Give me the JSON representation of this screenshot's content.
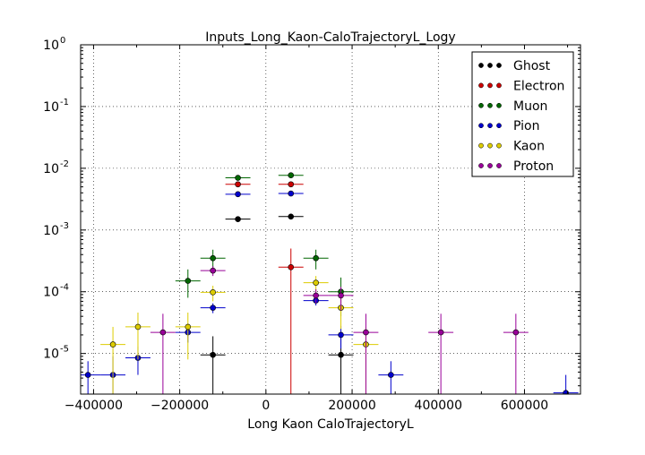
{
  "chart_data": {
    "type": "scatter",
    "title": "Inputs_Long_Kaon-CaloTrajectoryL_Logy",
    "xlabel": "Long Kaon CaloTrajectoryL",
    "ylabel": "",
    "xlim": [
      -430000,
      730000
    ],
    "ylim": [
      2.2e-06,
      1
    ],
    "yscale": "log",
    "grid": true,
    "legend_position": "top-right",
    "xticks": [
      -400000,
      -200000,
      0,
      200000,
      400000,
      600000
    ],
    "xtick_labels": [
      "−400000",
      "−200000",
      "0",
      "200000",
      "400000",
      "600000"
    ],
    "yticks": [
      1e-05,
      0.0001,
      0.001,
      0.01,
      0.1,
      1
    ],
    "ytick_labels": [
      {
        "base": "10",
        "exp": "-5"
      },
      {
        "base": "10",
        "exp": "-4"
      },
      {
        "base": "10",
        "exp": "-3"
      },
      {
        "base": "10",
        "exp": "-2"
      },
      {
        "base": "10",
        "exp": "-1"
      },
      {
        "base": "10",
        "exp": "0"
      }
    ],
    "bin_halfwidth": 29000,
    "series": [
      {
        "name": "Ghost",
        "color": "#000000",
        "points": [
          {
            "x": -65000,
            "y": 0.0015,
            "ylo": 0.00135,
            "yhi": 0.00165
          },
          {
            "x": 58000,
            "y": 0.00165,
            "ylo": 0.0015,
            "yhi": 0.0018
          },
          {
            "x": -123000,
            "y": 9.5e-06,
            "ylo": 1e-07,
            "yhi": 1.9e-05
          },
          {
            "x": 174000,
            "y": 9.5e-06,
            "ylo": 1e-07,
            "yhi": 1.9e-05
          }
        ]
      },
      {
        "name": "Electron",
        "color": "#cc0000",
        "points": [
          {
            "x": -65000,
            "y": 0.0055,
            "ylo": 0.0052,
            "yhi": 0.0058
          },
          {
            "x": 58000,
            "y": 0.0055,
            "ylo": 0.0052,
            "yhi": 0.0058
          },
          {
            "x": 58000,
            "y": 0.00025,
            "ylo": 1e-07,
            "yhi": 0.0005
          }
        ]
      },
      {
        "name": "Muon",
        "color": "#006600",
        "points": [
          {
            "x": -65000,
            "y": 0.007,
            "ylo": 0.0066,
            "yhi": 0.0074
          },
          {
            "x": 58000,
            "y": 0.0077,
            "ylo": 0.0073,
            "yhi": 0.0081
          },
          {
            "x": -123000,
            "y": 0.00035,
            "ylo": 0.00023,
            "yhi": 0.00048
          },
          {
            "x": 116000,
            "y": 0.00035,
            "ylo": 0.00023,
            "yhi": 0.00048
          },
          {
            "x": -181000,
            "y": 0.00015,
            "ylo": 8e-05,
            "yhi": 0.00023
          },
          {
            "x": 174000,
            "y": 0.0001,
            "ylo": 4e-05,
            "yhi": 0.00017
          }
        ]
      },
      {
        "name": "Pion",
        "color": "#0000cc",
        "points": [
          {
            "x": -65000,
            "y": 0.0038,
            "ylo": 0.0036,
            "yhi": 0.004
          },
          {
            "x": 58000,
            "y": 0.0039,
            "ylo": 0.0037,
            "yhi": 0.0041
          },
          {
            "x": -123000,
            "y": 5.5e-05,
            "ylo": 4.5e-05,
            "yhi": 6.5e-05
          },
          {
            "x": 116000,
            "y": 7.2e-05,
            "ylo": 6e-05,
            "yhi": 8.5e-05
          },
          {
            "x": -181000,
            "y": 2.2e-05,
            "ylo": 1.5e-05,
            "yhi": 3e-05
          },
          {
            "x": 174000,
            "y": 2e-05,
            "ylo": 1.2e-05,
            "yhi": 2.8e-05
          },
          {
            "x": -297000,
            "y": 8.5e-06,
            "ylo": 4.5e-06,
            "yhi": 1.3e-05
          },
          {
            "x": -355000,
            "y": 4.5e-06,
            "ylo": 1e-07,
            "yhi": 9e-06
          },
          {
            "x": -413000,
            "y": 4.5e-06,
            "ylo": 1e-07,
            "yhi": 7.5e-06
          },
          {
            "x": 290000,
            "y": 4.5e-06,
            "ylo": 1e-07,
            "yhi": 7.5e-06
          },
          {
            "x": 696000,
            "y": 2.3e-06,
            "ylo": 1e-07,
            "yhi": 4.5e-06
          }
        ]
      },
      {
        "name": "Kaon",
        "color": "#ddcc00",
        "points": [
          {
            "x": -123000,
            "y": 9.8e-05,
            "ylo": 7e-05,
            "yhi": 0.000125
          },
          {
            "x": 116000,
            "y": 0.00014,
            "ylo": 0.0001,
            "yhi": 0.00018
          },
          {
            "x": -181000,
            "y": 2.7e-05,
            "ylo": 8e-06,
            "yhi": 4.6e-05
          },
          {
            "x": 174000,
            "y": 5.5e-05,
            "ylo": 2.5e-05,
            "yhi": 8.5e-05
          },
          {
            "x": -297000,
            "y": 2.7e-05,
            "ylo": 8e-06,
            "yhi": 4.6e-05
          },
          {
            "x": -355000,
            "y": 1.4e-05,
            "ylo": 1e-07,
            "yhi": 2.7e-05
          },
          {
            "x": 232000,
            "y": 1.4e-05,
            "ylo": 1e-07,
            "yhi": 2.7e-05
          }
        ]
      },
      {
        "name": "Proton",
        "color": "#990099",
        "points": [
          {
            "x": -123000,
            "y": 0.00022,
            "ylo": 0.00018,
            "yhi": 0.00026
          },
          {
            "x": 116000,
            "y": 8.7e-05,
            "ylo": 6.5e-05,
            "yhi": 0.00011
          },
          {
            "x": 174000,
            "y": 8.7e-05,
            "ylo": 5e-05,
            "yhi": 0.00012
          },
          {
            "x": -239000,
            "y": 2.2e-05,
            "ylo": 1e-07,
            "yhi": 4.4e-05
          },
          {
            "x": 232000,
            "y": 2.2e-05,
            "ylo": 1e-07,
            "yhi": 4.4e-05
          },
          {
            "x": 406000,
            "y": 2.2e-05,
            "ylo": 1e-07,
            "yhi": 4.4e-05
          },
          {
            "x": 580000,
            "y": 2.2e-05,
            "ylo": 1e-07,
            "yhi": 4.4e-05
          }
        ]
      }
    ]
  }
}
